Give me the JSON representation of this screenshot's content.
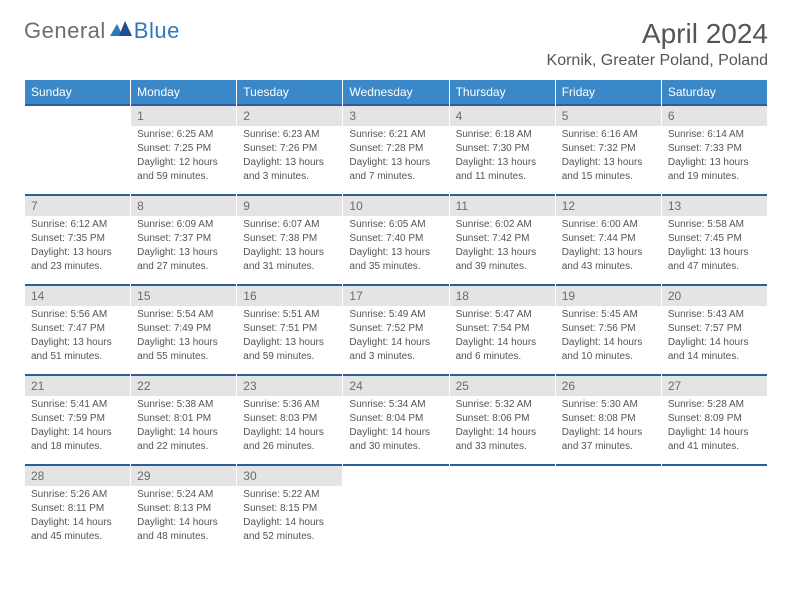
{
  "brand": {
    "part1": "General",
    "part2": "Blue"
  },
  "title": "April 2024",
  "location": "Kornik, Greater Poland, Poland",
  "colors": {
    "header_bg": "#3a88c8",
    "header_text": "#ffffff",
    "daynum_bg": "#e4e4e4",
    "daynum_text": "#6c6c6c",
    "daynum_border_top": "#2c5f95",
    "body_text": "#555555",
    "brand_gray": "#6d6e71",
    "brand_blue": "#2f78bf"
  },
  "day_headers": [
    "Sunday",
    "Monday",
    "Tuesday",
    "Wednesday",
    "Thursday",
    "Friday",
    "Saturday"
  ],
  "weeks": [
    [
      {
        "num": "",
        "lines": []
      },
      {
        "num": "1",
        "lines": [
          "Sunrise: 6:25 AM",
          "Sunset: 7:25 PM",
          "Daylight: 12 hours",
          "and 59 minutes."
        ]
      },
      {
        "num": "2",
        "lines": [
          "Sunrise: 6:23 AM",
          "Sunset: 7:26 PM",
          "Daylight: 13 hours",
          "and 3 minutes."
        ]
      },
      {
        "num": "3",
        "lines": [
          "Sunrise: 6:21 AM",
          "Sunset: 7:28 PM",
          "Daylight: 13 hours",
          "and 7 minutes."
        ]
      },
      {
        "num": "4",
        "lines": [
          "Sunrise: 6:18 AM",
          "Sunset: 7:30 PM",
          "Daylight: 13 hours",
          "and 11 minutes."
        ]
      },
      {
        "num": "5",
        "lines": [
          "Sunrise: 6:16 AM",
          "Sunset: 7:32 PM",
          "Daylight: 13 hours",
          "and 15 minutes."
        ]
      },
      {
        "num": "6",
        "lines": [
          "Sunrise: 6:14 AM",
          "Sunset: 7:33 PM",
          "Daylight: 13 hours",
          "and 19 minutes."
        ]
      }
    ],
    [
      {
        "num": "7",
        "lines": [
          "Sunrise: 6:12 AM",
          "Sunset: 7:35 PM",
          "Daylight: 13 hours",
          "and 23 minutes."
        ]
      },
      {
        "num": "8",
        "lines": [
          "Sunrise: 6:09 AM",
          "Sunset: 7:37 PM",
          "Daylight: 13 hours",
          "and 27 minutes."
        ]
      },
      {
        "num": "9",
        "lines": [
          "Sunrise: 6:07 AM",
          "Sunset: 7:38 PM",
          "Daylight: 13 hours",
          "and 31 minutes."
        ]
      },
      {
        "num": "10",
        "lines": [
          "Sunrise: 6:05 AM",
          "Sunset: 7:40 PM",
          "Daylight: 13 hours",
          "and 35 minutes."
        ]
      },
      {
        "num": "11",
        "lines": [
          "Sunrise: 6:02 AM",
          "Sunset: 7:42 PM",
          "Daylight: 13 hours",
          "and 39 minutes."
        ]
      },
      {
        "num": "12",
        "lines": [
          "Sunrise: 6:00 AM",
          "Sunset: 7:44 PM",
          "Daylight: 13 hours",
          "and 43 minutes."
        ]
      },
      {
        "num": "13",
        "lines": [
          "Sunrise: 5:58 AM",
          "Sunset: 7:45 PM",
          "Daylight: 13 hours",
          "and 47 minutes."
        ]
      }
    ],
    [
      {
        "num": "14",
        "lines": [
          "Sunrise: 5:56 AM",
          "Sunset: 7:47 PM",
          "Daylight: 13 hours",
          "and 51 minutes."
        ]
      },
      {
        "num": "15",
        "lines": [
          "Sunrise: 5:54 AM",
          "Sunset: 7:49 PM",
          "Daylight: 13 hours",
          "and 55 minutes."
        ]
      },
      {
        "num": "16",
        "lines": [
          "Sunrise: 5:51 AM",
          "Sunset: 7:51 PM",
          "Daylight: 13 hours",
          "and 59 minutes."
        ]
      },
      {
        "num": "17",
        "lines": [
          "Sunrise: 5:49 AM",
          "Sunset: 7:52 PM",
          "Daylight: 14 hours",
          "and 3 minutes."
        ]
      },
      {
        "num": "18",
        "lines": [
          "Sunrise: 5:47 AM",
          "Sunset: 7:54 PM",
          "Daylight: 14 hours",
          "and 6 minutes."
        ]
      },
      {
        "num": "19",
        "lines": [
          "Sunrise: 5:45 AM",
          "Sunset: 7:56 PM",
          "Daylight: 14 hours",
          "and 10 minutes."
        ]
      },
      {
        "num": "20",
        "lines": [
          "Sunrise: 5:43 AM",
          "Sunset: 7:57 PM",
          "Daylight: 14 hours",
          "and 14 minutes."
        ]
      }
    ],
    [
      {
        "num": "21",
        "lines": [
          "Sunrise: 5:41 AM",
          "Sunset: 7:59 PM",
          "Daylight: 14 hours",
          "and 18 minutes."
        ]
      },
      {
        "num": "22",
        "lines": [
          "Sunrise: 5:38 AM",
          "Sunset: 8:01 PM",
          "Daylight: 14 hours",
          "and 22 minutes."
        ]
      },
      {
        "num": "23",
        "lines": [
          "Sunrise: 5:36 AM",
          "Sunset: 8:03 PM",
          "Daylight: 14 hours",
          "and 26 minutes."
        ]
      },
      {
        "num": "24",
        "lines": [
          "Sunrise: 5:34 AM",
          "Sunset: 8:04 PM",
          "Daylight: 14 hours",
          "and 30 minutes."
        ]
      },
      {
        "num": "25",
        "lines": [
          "Sunrise: 5:32 AM",
          "Sunset: 8:06 PM",
          "Daylight: 14 hours",
          "and 33 minutes."
        ]
      },
      {
        "num": "26",
        "lines": [
          "Sunrise: 5:30 AM",
          "Sunset: 8:08 PM",
          "Daylight: 14 hours",
          "and 37 minutes."
        ]
      },
      {
        "num": "27",
        "lines": [
          "Sunrise: 5:28 AM",
          "Sunset: 8:09 PM",
          "Daylight: 14 hours",
          "and 41 minutes."
        ]
      }
    ],
    [
      {
        "num": "28",
        "lines": [
          "Sunrise: 5:26 AM",
          "Sunset: 8:11 PM",
          "Daylight: 14 hours",
          "and 45 minutes."
        ]
      },
      {
        "num": "29",
        "lines": [
          "Sunrise: 5:24 AM",
          "Sunset: 8:13 PM",
          "Daylight: 14 hours",
          "and 48 minutes."
        ]
      },
      {
        "num": "30",
        "lines": [
          "Sunrise: 5:22 AM",
          "Sunset: 8:15 PM",
          "Daylight: 14 hours",
          "and 52 minutes."
        ]
      },
      {
        "num": "",
        "lines": []
      },
      {
        "num": "",
        "lines": []
      },
      {
        "num": "",
        "lines": []
      },
      {
        "num": "",
        "lines": []
      }
    ]
  ]
}
